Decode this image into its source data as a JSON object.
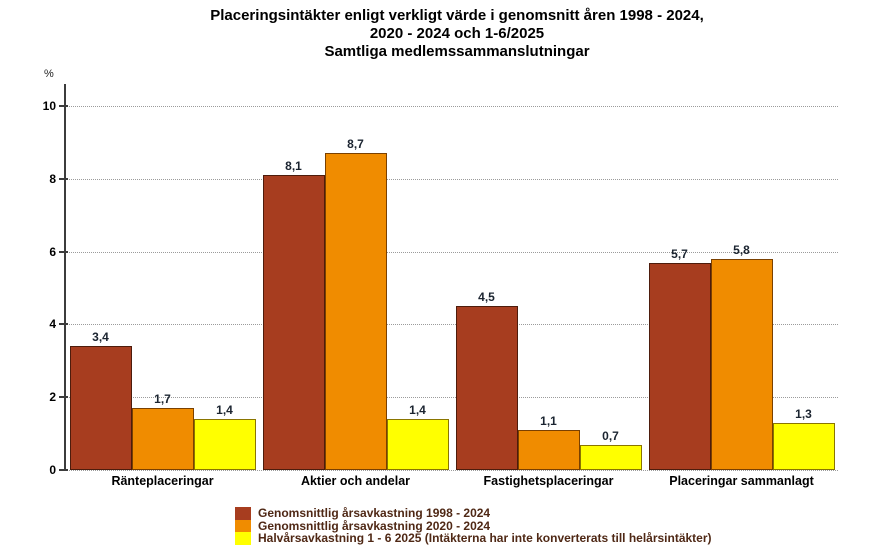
{
  "title": {
    "line1": "Placeringsintäkter enligt verkligt värde i genomsnitt åren 1998 - 2024,",
    "line2": "2020 - 2024 och 1-6/2025",
    "line3": "Samtliga medlemssammanslutningar"
  },
  "chart_data": {
    "type": "bar",
    "title": "Placeringsintäkter enligt verkligt värde i genomsnitt åren 1998 - 2024, 2020 - 2024 och 1-6/2025 — Samtliga medlemssammanslutningar",
    "xlabel": "",
    "ylabel": "%",
    "ylim": [
      0,
      10
    ],
    "yticks": [
      0,
      2,
      4,
      6,
      8,
      10
    ],
    "grid": "horizontal-dotted",
    "legend_position": "bottom",
    "categories": [
      "Ränteplaceringar",
      "Aktier och andelar",
      "Fastighetsplaceringar",
      "Placeringar sammanlagt"
    ],
    "series": [
      {
        "name": "Genomsnittlig årsavkastning 1998 - 2024",
        "color": "#A73D1F",
        "border_color": "#4d1c0c",
        "values": [
          3.4,
          8.1,
          4.5,
          5.7
        ],
        "labels": [
          "3,4",
          "8,1",
          "4,5",
          "5,7"
        ]
      },
      {
        "name": "Genomsnittlig årsavkastning 2020 - 2024",
        "color": "#F08C00",
        "border_color": "#7a4000",
        "values": [
          1.7,
          8.7,
          1.1,
          5.8
        ],
        "labels": [
          "1,7",
          "8,7",
          "1,1",
          "5,8"
        ]
      },
      {
        "name": "Halvårsavkastning 1 - 6 2025 (Intäkterna har inte konverterats till helårsintäkter)",
        "color": "#FFFF00",
        "border_color": "#8a7500",
        "values": [
          1.4,
          1.4,
          0.7,
          1.3
        ],
        "labels": [
          "1,4",
          "1,4",
          "0,7",
          "1,3"
        ]
      }
    ]
  },
  "colors": {
    "background": "#ffffff",
    "axis": "#3c3c3c",
    "gridline": "#9b9b9b",
    "value_label": "#1b2430",
    "legend_text": "#4f2815",
    "title_text": "#000000"
  }
}
